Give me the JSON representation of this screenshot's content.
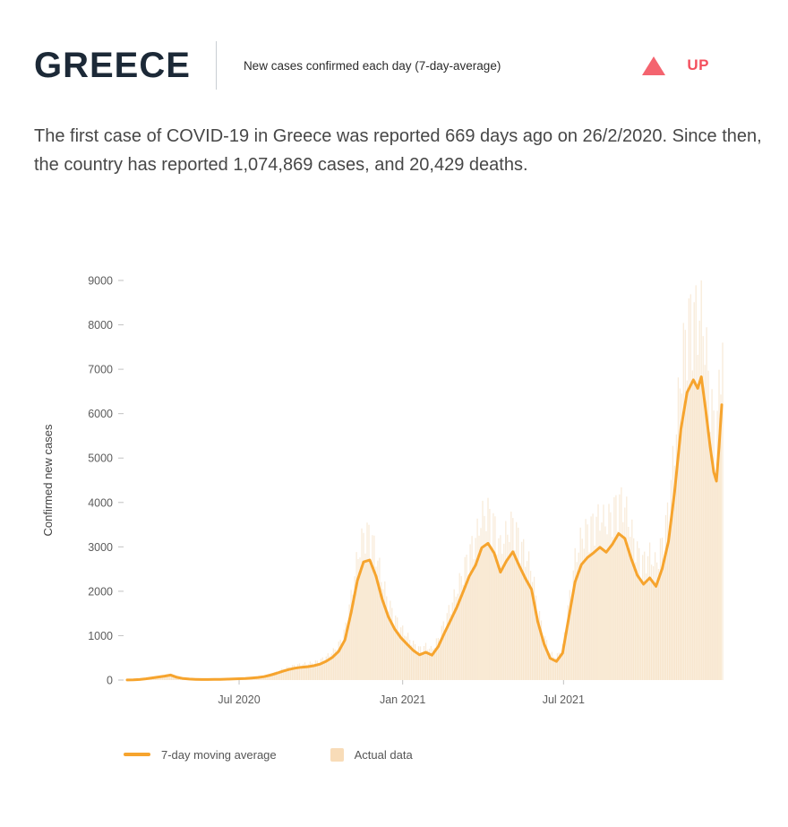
{
  "header": {
    "title": "GREECE",
    "subtitle": "New cases confirmed each day (7-day-average)",
    "trend_label": "UP",
    "trend_color": "#f4505e",
    "trend_icon_color": "#f4646f"
  },
  "summary": "The first case of COVID-19 in Greece was reported 669 days ago on 26/2/2020. Since then, the country has reported 1,074,869 cases, and 20,429 deaths.",
  "chart_data": {
    "type": "line",
    "title": "",
    "xlabel": "",
    "ylabel": "Confirmed new cases",
    "ylim": [
      0,
      9000
    ],
    "yticks": [
      0,
      1000,
      2000,
      3000,
      4000,
      5000,
      6000,
      7000,
      8000,
      9000
    ],
    "x_range": [
      "2020-02-22",
      "2021-12-28"
    ],
    "xticks": [
      {
        "date": "2020-07-01",
        "label": "Jul 2020"
      },
      {
        "date": "2021-01-01",
        "label": "Jan 2021"
      },
      {
        "date": "2021-07-01",
        "label": "Jul 2021"
      }
    ],
    "grid": false,
    "legend": [
      {
        "label": "7-day moving average",
        "type": "line",
        "color": "#f6a42e"
      },
      {
        "label": "Actual data",
        "type": "square",
        "color": "#f8dcb8"
      }
    ],
    "colors": {
      "line": "#f6a42e",
      "area": "#fcf2e4",
      "bars": "#f3d9b5"
    },
    "series": [
      {
        "name": "7-day moving average",
        "points": [
          [
            "2020-02-26",
            2
          ],
          [
            "2020-03-04",
            5
          ],
          [
            "2020-03-11",
            12
          ],
          [
            "2020-03-18",
            28
          ],
          [
            "2020-03-25",
            48
          ],
          [
            "2020-04-01",
            68
          ],
          [
            "2020-04-08",
            88
          ],
          [
            "2020-04-15",
            112
          ],
          [
            "2020-04-22",
            62
          ],
          [
            "2020-04-29",
            34
          ],
          [
            "2020-05-06",
            22
          ],
          [
            "2020-05-13",
            16
          ],
          [
            "2020-05-20",
            13
          ],
          [
            "2020-05-27",
            12
          ],
          [
            "2020-06-03",
            14
          ],
          [
            "2020-06-10",
            17
          ],
          [
            "2020-06-17",
            21
          ],
          [
            "2020-06-24",
            26
          ],
          [
            "2020-07-01",
            31
          ],
          [
            "2020-07-08",
            37
          ],
          [
            "2020-07-15",
            46
          ],
          [
            "2020-07-22",
            58
          ],
          [
            "2020-07-29",
            76
          ],
          [
            "2020-08-05",
            110
          ],
          [
            "2020-08-12",
            152
          ],
          [
            "2020-08-19",
            198
          ],
          [
            "2020-08-26",
            238
          ],
          [
            "2020-09-02",
            268
          ],
          [
            "2020-09-09",
            288
          ],
          [
            "2020-09-16",
            300
          ],
          [
            "2020-09-23",
            322
          ],
          [
            "2020-09-30",
            360
          ],
          [
            "2020-10-07",
            424
          ],
          [
            "2020-10-14",
            512
          ],
          [
            "2020-10-21",
            648
          ],
          [
            "2020-10-28",
            905
          ],
          [
            "2020-11-04",
            1520
          ],
          [
            "2020-11-11",
            2240
          ],
          [
            "2020-11-18",
            2660
          ],
          [
            "2020-11-25",
            2705
          ],
          [
            "2020-12-02",
            2340
          ],
          [
            "2020-12-09",
            1820
          ],
          [
            "2020-12-16",
            1420
          ],
          [
            "2020-12-23",
            1150
          ],
          [
            "2020-12-30",
            955
          ],
          [
            "2021-01-06",
            810
          ],
          [
            "2021-01-13",
            665
          ],
          [
            "2021-01-20",
            570
          ],
          [
            "2021-01-27",
            625
          ],
          [
            "2021-02-03",
            560
          ],
          [
            "2021-02-10",
            755
          ],
          [
            "2021-02-17",
            1060
          ],
          [
            "2021-02-24",
            1350
          ],
          [
            "2021-03-03",
            1640
          ],
          [
            "2021-03-10",
            1990
          ],
          [
            "2021-03-17",
            2340
          ],
          [
            "2021-03-24",
            2590
          ],
          [
            "2021-03-31",
            2980
          ],
          [
            "2021-04-07",
            3080
          ],
          [
            "2021-04-14",
            2860
          ],
          [
            "2021-04-21",
            2430
          ],
          [
            "2021-04-28",
            2690
          ],
          [
            "2021-05-05",
            2890
          ],
          [
            "2021-05-12",
            2580
          ],
          [
            "2021-05-19",
            2290
          ],
          [
            "2021-05-26",
            2040
          ],
          [
            "2021-06-02",
            1320
          ],
          [
            "2021-06-09",
            820
          ],
          [
            "2021-06-16",
            490
          ],
          [
            "2021-06-23",
            420
          ],
          [
            "2021-06-30",
            610
          ],
          [
            "2021-07-07",
            1420
          ],
          [
            "2021-07-14",
            2210
          ],
          [
            "2021-07-21",
            2600
          ],
          [
            "2021-07-28",
            2760
          ],
          [
            "2021-08-04",
            2870
          ],
          [
            "2021-08-11",
            2990
          ],
          [
            "2021-08-18",
            2880
          ],
          [
            "2021-08-25",
            3060
          ],
          [
            "2021-09-01",
            3300
          ],
          [
            "2021-09-08",
            3190
          ],
          [
            "2021-09-15",
            2740
          ],
          [
            "2021-09-22",
            2360
          ],
          [
            "2021-09-29",
            2160
          ],
          [
            "2021-10-06",
            2300
          ],
          [
            "2021-10-13",
            2110
          ],
          [
            "2021-10-20",
            2510
          ],
          [
            "2021-10-27",
            3120
          ],
          [
            "2021-11-03",
            4250
          ],
          [
            "2021-11-10",
            5650
          ],
          [
            "2021-11-17",
            6480
          ],
          [
            "2021-11-24",
            6760
          ],
          [
            "2021-11-29",
            6570
          ],
          [
            "2021-12-03",
            6830
          ],
          [
            "2021-12-08",
            6080
          ],
          [
            "2021-12-13",
            5250
          ],
          [
            "2021-12-17",
            4680
          ],
          [
            "2021-12-20",
            4480
          ],
          [
            "2021-12-23",
            5250
          ],
          [
            "2021-12-26",
            6200
          ]
        ]
      }
    ]
  }
}
